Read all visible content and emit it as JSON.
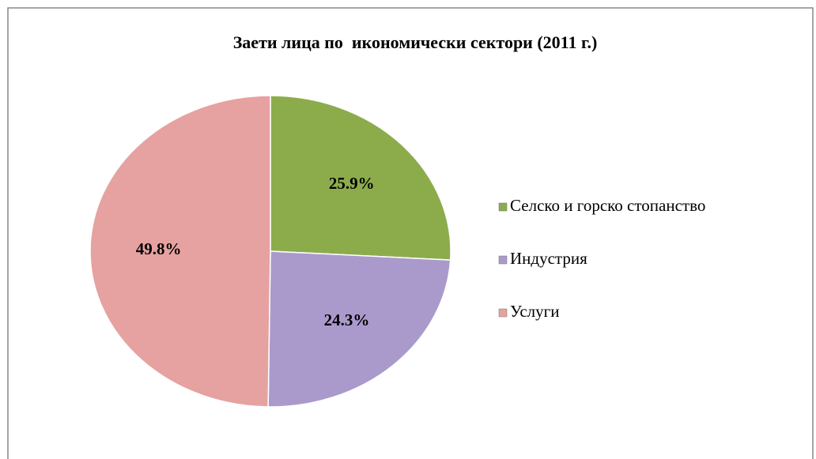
{
  "chart_data": {
    "type": "pie",
    "title": "Заети лица по  икономически сектори (2011 г.)",
    "categories": [
      "Селско и горско стопанство",
      "Индустрия",
      "Услуги"
    ],
    "values": [
      25.9,
      24.3,
      49.8
    ],
    "value_labels": [
      "25.9%",
      "24.3%",
      "49.8%"
    ],
    "colors": [
      "#8cac4c",
      "#aa9acc",
      "#e6a2a0"
    ],
    "legend": "right"
  }
}
